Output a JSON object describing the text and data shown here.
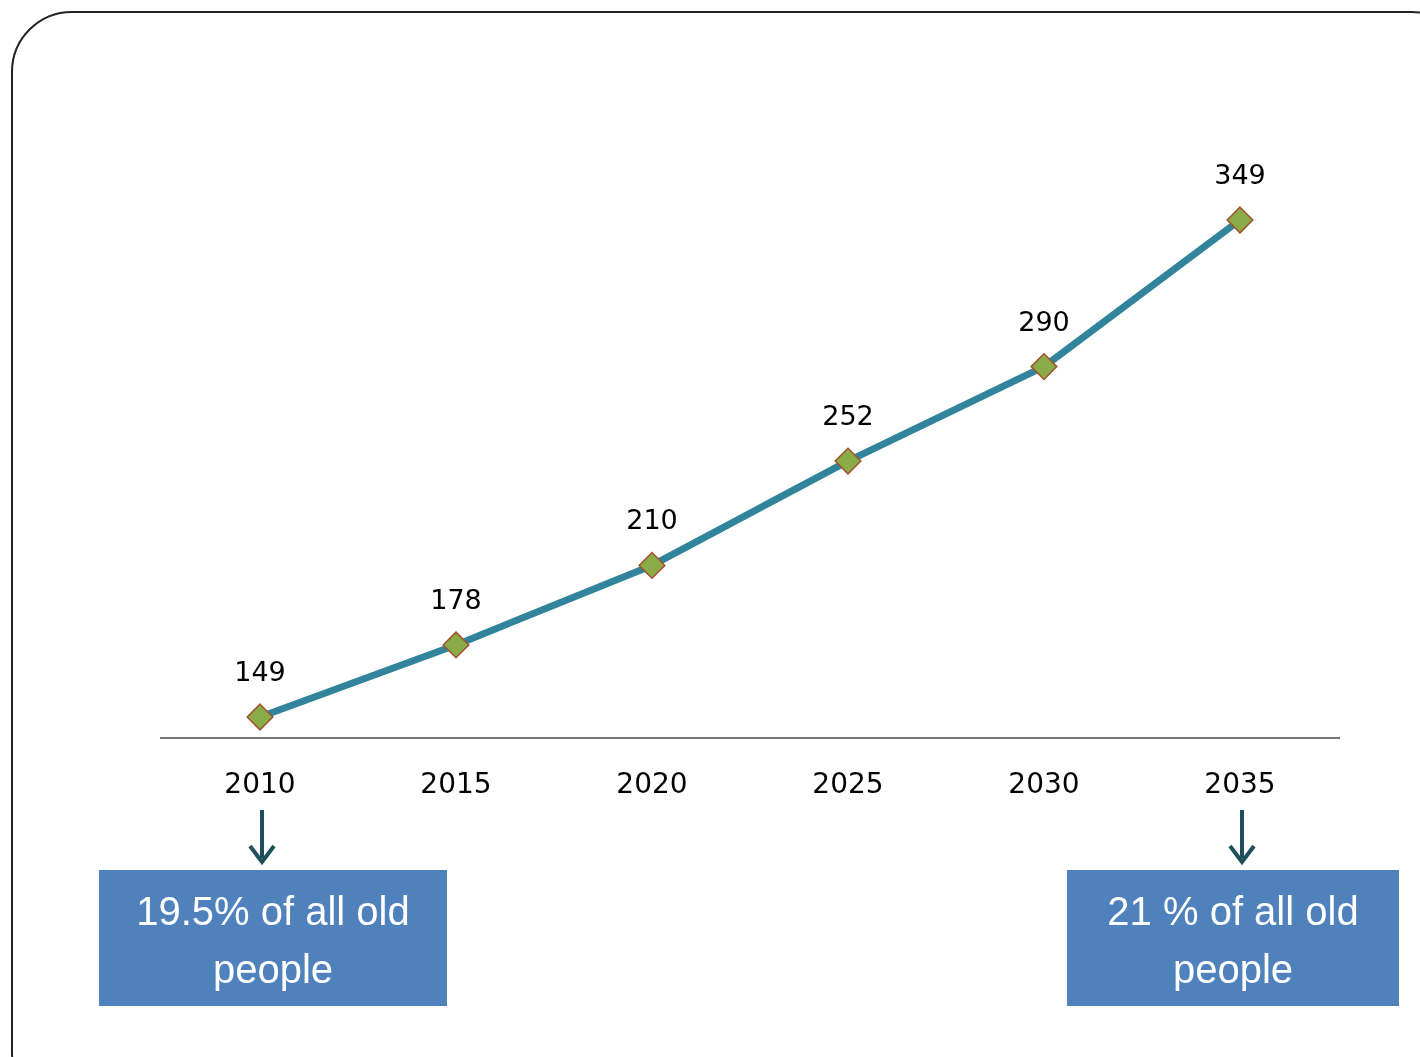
{
  "chart_data": {
    "type": "line",
    "categories": [
      "2010",
      "2015",
      "2020",
      "2025",
      "2030",
      "2035"
    ],
    "series": [
      {
        "color": "#31849b",
        "values": [
          149,
          178,
          210,
          252,
          290,
          349
        ]
      }
    ],
    "tick_labels": "x",
    "data_labels": true,
    "marker": "diamond",
    "line_style": "solid",
    "annotations": [
      {
        "text": "19.5% of all old people",
        "x": "2010"
      },
      {
        "text": "21 % of all old people",
        "x": "2035"
      }
    ]
  }
}
